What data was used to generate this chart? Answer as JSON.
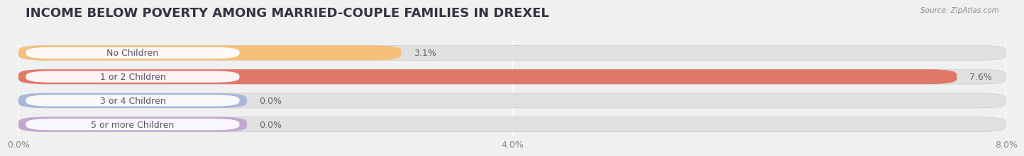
{
  "title": "INCOME BELOW POVERTY AMONG MARRIED-COUPLE FAMILIES IN DREXEL",
  "source": "Source: ZipAtlas.com",
  "categories": [
    "No Children",
    "1 or 2 Children",
    "3 or 4 Children",
    "5 or more Children"
  ],
  "values": [
    3.1,
    7.6,
    0.0,
    0.0
  ],
  "bar_colors": [
    "#f5c07a",
    "#e07868",
    "#a8b8d8",
    "#c0a8d0"
  ],
  "label_text_color": "#555566",
  "xlim": [
    0,
    8.0
  ],
  "xticks": [
    0.0,
    4.0,
    8.0
  ],
  "xticklabels": [
    "0.0%",
    "4.0%",
    "8.0%"
  ],
  "bar_height": 0.62,
  "background_color": "#f0f0f0",
  "bar_bg_color": "#e0e0e0",
  "title_fontsize": 13,
  "label_fontsize": 9,
  "value_fontsize": 9,
  "tick_fontsize": 9,
  "value_label_color": "#666666"
}
